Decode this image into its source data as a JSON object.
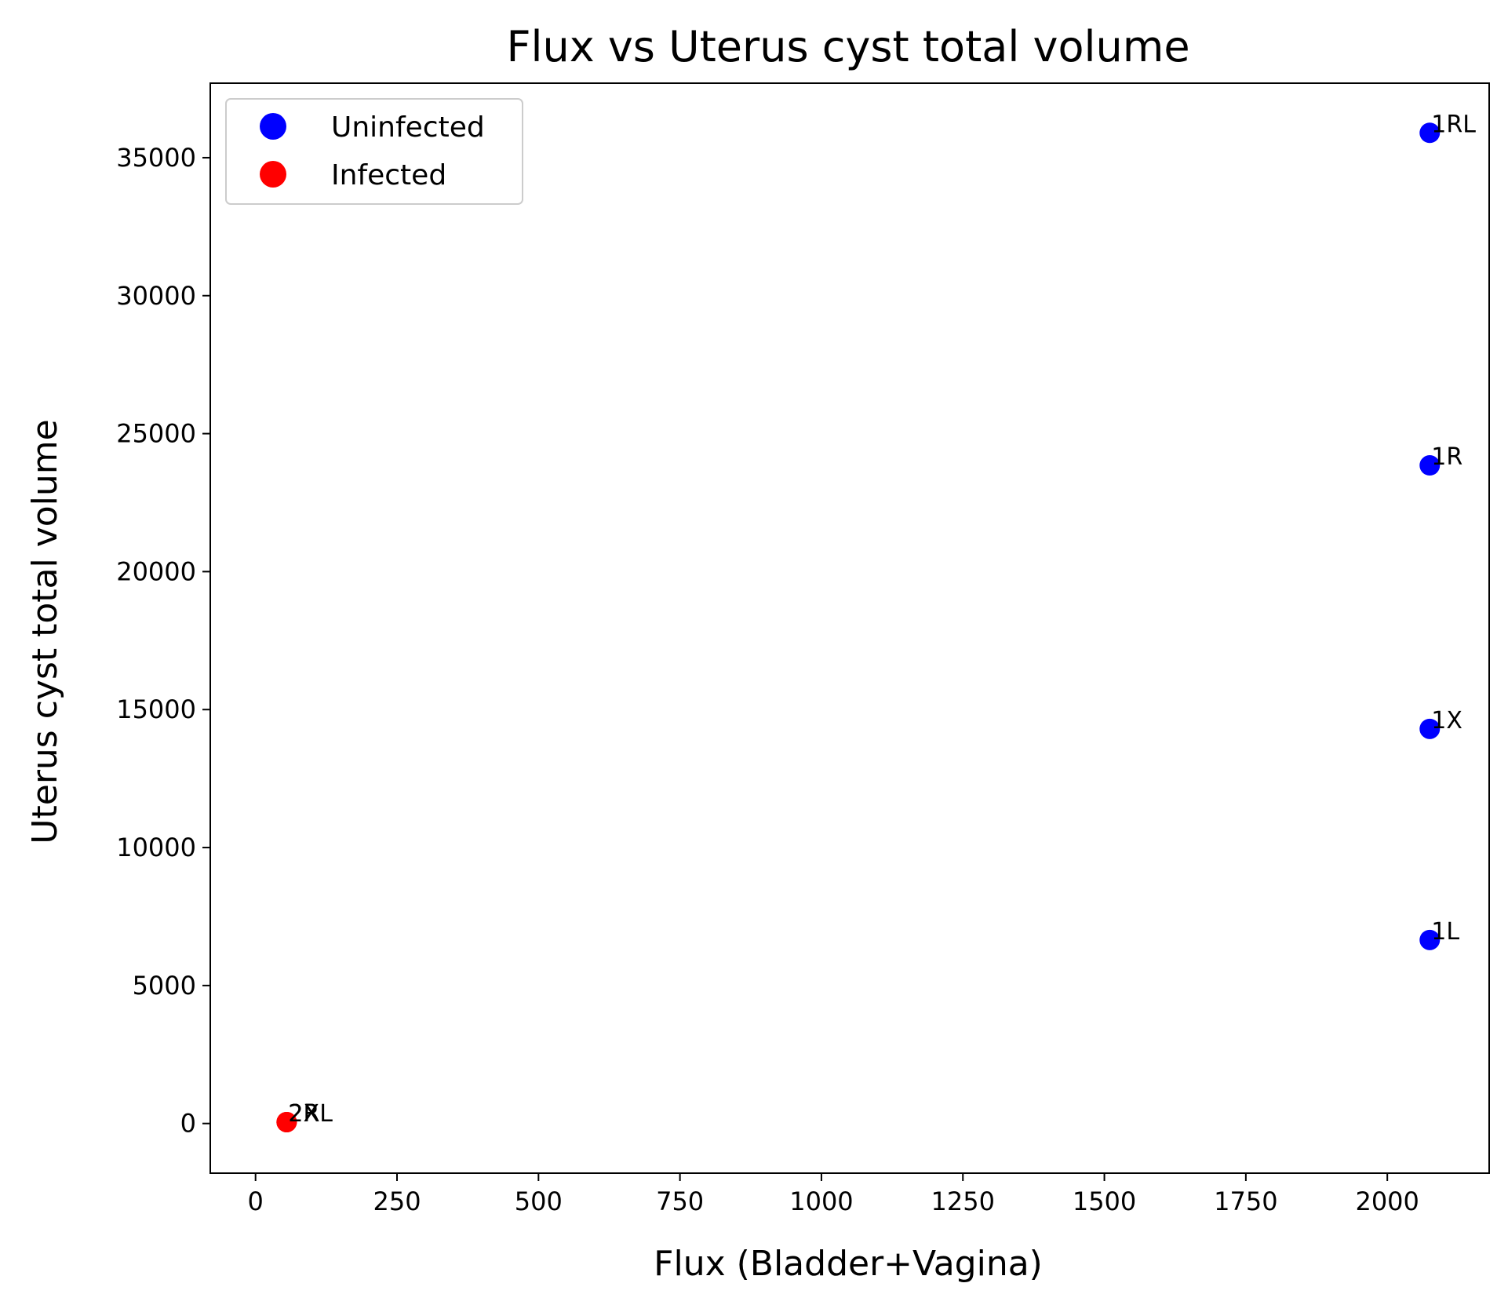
{
  "chart_data": {
    "type": "scatter",
    "title": "Flux vs Uterus cyst total volume",
    "xlabel": "Flux (Bladder+Vagina)",
    "ylabel": "Uterus cyst total volume",
    "xlim": [
      -80,
      2180
    ],
    "ylim": [
      -1800,
      37700
    ],
    "xticks": [
      0,
      250,
      500,
      750,
      1000,
      1250,
      1500,
      1750,
      2000
    ],
    "yticks": [
      0,
      5000,
      10000,
      15000,
      20000,
      25000,
      30000,
      35000
    ],
    "grid": false,
    "legend_position": "upper left",
    "series": [
      {
        "name": "Uninfected",
        "color": "#0000ff",
        "points": [
          {
            "x": 2075,
            "y": 35900,
            "label": "1RL"
          },
          {
            "x": 2075,
            "y": 23850,
            "label": "1R"
          },
          {
            "x": 2075,
            "y": 14300,
            "label": "1X"
          },
          {
            "x": 2075,
            "y": 6650,
            "label": "1L"
          }
        ]
      },
      {
        "name": "Infected",
        "color": "#ff0000",
        "points": [
          {
            "x": 55,
            "y": 50,
            "label": "2X"
          },
          {
            "x": 55,
            "y": 50,
            "label": "2RL"
          },
          {
            "x": 55,
            "y": 50,
            "label": "2R"
          }
        ]
      }
    ]
  }
}
